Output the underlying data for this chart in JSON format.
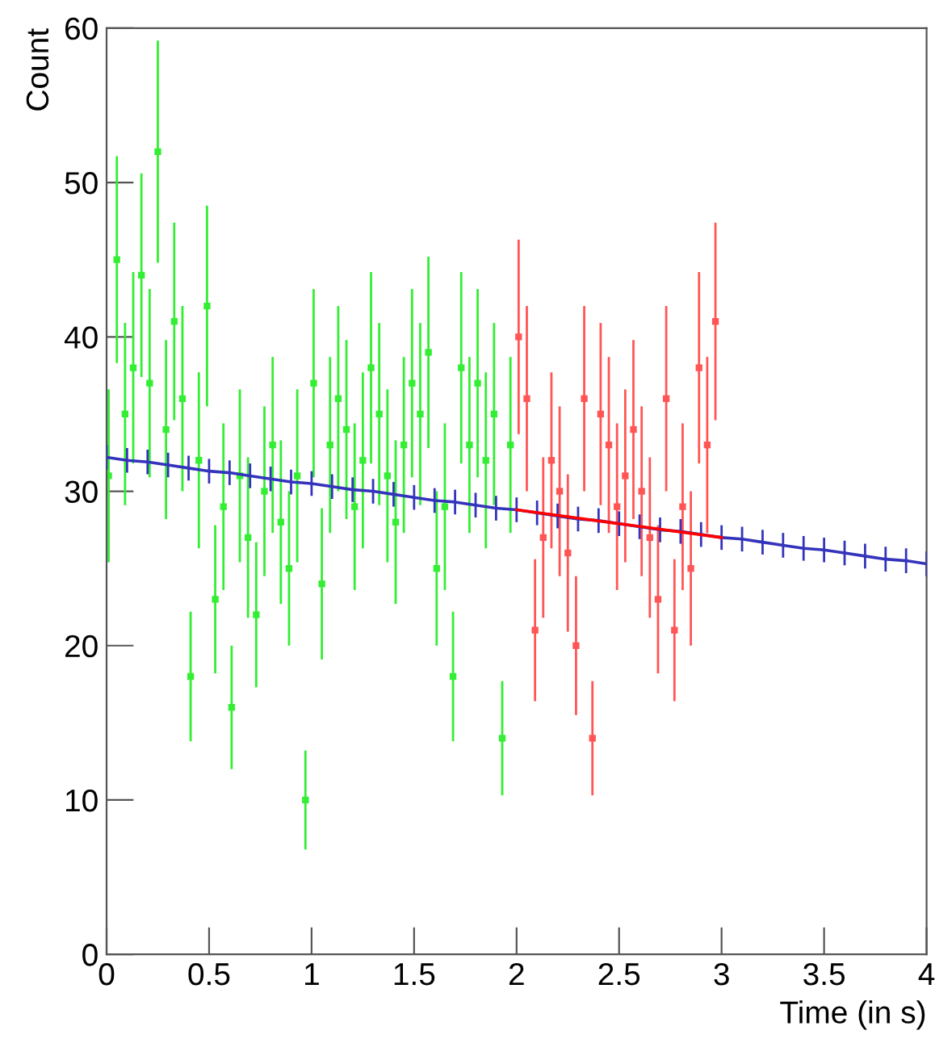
{
  "chart_data": {
    "type": "scatter",
    "xlabel": "Time (in s)",
    "ylabel": "Count",
    "xlim": [
      0,
      4
    ],
    "ylim": [
      0,
      60
    ],
    "xticks": [
      0,
      0.5,
      1,
      1.5,
      2,
      2.5,
      3,
      3.5,
      4
    ],
    "yticks": [
      0,
      10,
      20,
      30,
      40,
      50,
      60
    ],
    "grid": false,
    "legend": false,
    "marker": "square",
    "series": [
      {
        "type": "scatter",
        "color": "#33ee33",
        "x": [
          0.01,
          0.05,
          0.09,
          0.13,
          0.17,
          0.21,
          0.25,
          0.29,
          0.33,
          0.37,
          0.41,
          0.45,
          0.49,
          0.53,
          0.57,
          0.61,
          0.65,
          0.69,
          0.73,
          0.77,
          0.81,
          0.85,
          0.89,
          0.93,
          0.97,
          1.01,
          1.05,
          1.09,
          1.13,
          1.17,
          1.21,
          1.25,
          1.29,
          1.33,
          1.37,
          1.41,
          1.45,
          1.49,
          1.53,
          1.57,
          1.61,
          1.65,
          1.69,
          1.73,
          1.77,
          1.81,
          1.85,
          1.89,
          1.93,
          1.97
        ],
        "values": [
          31,
          45,
          35,
          38,
          44,
          37,
          52,
          34,
          41,
          36,
          18,
          32,
          42,
          23,
          29,
          16,
          31,
          27,
          22,
          30,
          33,
          28,
          25,
          31,
          10,
          37,
          24,
          33,
          36,
          34,
          29,
          32,
          38,
          35,
          31,
          28,
          33,
          37,
          35,
          39,
          25,
          29,
          18,
          38,
          33,
          37,
          32,
          35,
          14,
          33
        ],
        "errors": [
          5.6,
          6.7,
          5.9,
          6.2,
          6.6,
          6.1,
          7.2,
          5.8,
          6.4,
          6.0,
          4.2,
          5.7,
          6.5,
          4.8,
          5.4,
          4.0,
          5.6,
          5.2,
          4.7,
          5.5,
          5.7,
          5.3,
          5.0,
          5.6,
          3.2,
          6.1,
          4.9,
          5.7,
          6.0,
          5.8,
          5.4,
          5.7,
          6.2,
          5.9,
          5.6,
          5.3,
          5.7,
          6.1,
          5.9,
          6.2,
          5.0,
          5.4,
          4.2,
          6.2,
          5.7,
          6.1,
          5.7,
          5.9,
          3.7,
          5.7
        ]
      },
      {
        "type": "scatter",
        "color": "#ff5555",
        "x": [
          2.01,
          2.05,
          2.09,
          2.13,
          2.17,
          2.21,
          2.25,
          2.29,
          2.33,
          2.37,
          2.41,
          2.45,
          2.49,
          2.53,
          2.57,
          2.61,
          2.65,
          2.69,
          2.73,
          2.77,
          2.81,
          2.85,
          2.89,
          2.93,
          2.97
        ],
        "values": [
          40,
          36,
          21,
          27,
          32,
          30,
          26,
          20,
          36,
          14,
          35,
          33,
          29,
          31,
          34,
          30,
          27,
          23,
          36,
          21,
          29,
          25,
          38,
          33,
          41
        ],
        "errors": [
          6.3,
          6.0,
          4.6,
          5.2,
          5.7,
          5.5,
          5.1,
          4.5,
          6.0,
          3.7,
          5.9,
          5.7,
          5.4,
          5.6,
          5.8,
          5.5,
          5.2,
          4.8,
          6.0,
          4.6,
          5.4,
          5.0,
          6.2,
          5.7,
          6.4
        ]
      },
      {
        "type": "line",
        "color": "#3333bb",
        "marker": "none",
        "x": [
          0,
          0.1,
          0.2,
          0.3,
          0.4,
          0.5,
          0.6,
          0.7,
          0.8,
          0.9,
          1,
          1.1,
          1.2,
          1.3,
          1.4,
          1.5,
          1.6,
          1.7,
          1.8,
          1.9,
          2,
          2.1,
          2.2,
          2.3,
          2.4,
          2.5,
          2.6,
          2.7,
          2.8,
          2.9,
          3,
          3.1,
          3.2,
          3.3,
          3.4,
          3.5,
          3.6,
          3.7,
          3.8,
          3.9,
          4
        ],
        "values": [
          32.2,
          32.0,
          31.9,
          31.7,
          31.5,
          31.3,
          31.2,
          31.0,
          30.8,
          30.6,
          30.5,
          30.3,
          30.1,
          30.0,
          29.8,
          29.6,
          29.4,
          29.3,
          29.1,
          28.9,
          28.8,
          28.6,
          28.4,
          28.2,
          28.1,
          27.9,
          27.7,
          27.5,
          27.4,
          27.2,
          27.0,
          26.9,
          26.7,
          26.5,
          26.3,
          26.2,
          26.0,
          25.8,
          25.6,
          25.5,
          25.3
        ],
        "errors": [
          0.8,
          0.8,
          0.8,
          0.8,
          0.8,
          0.8,
          0.8,
          0.8,
          0.8,
          0.8,
          0.8,
          0.8,
          0.8,
          0.8,
          0.8,
          0.8,
          0.8,
          0.8,
          0.8,
          0.8,
          0.8,
          0.8,
          0.8,
          0.8,
          0.8,
          0.8,
          0.8,
          0.8,
          0.8,
          0.8,
          0.8,
          0.8,
          0.8,
          0.8,
          0.8,
          0.8,
          0.8,
          0.8,
          0.8,
          0.8,
          0.8
        ]
      },
      {
        "type": "line",
        "color": "#ff0000",
        "marker": "none",
        "x": [
          2.0,
          3.0
        ],
        "values": [
          28.8,
          27.0
        ]
      }
    ]
  }
}
